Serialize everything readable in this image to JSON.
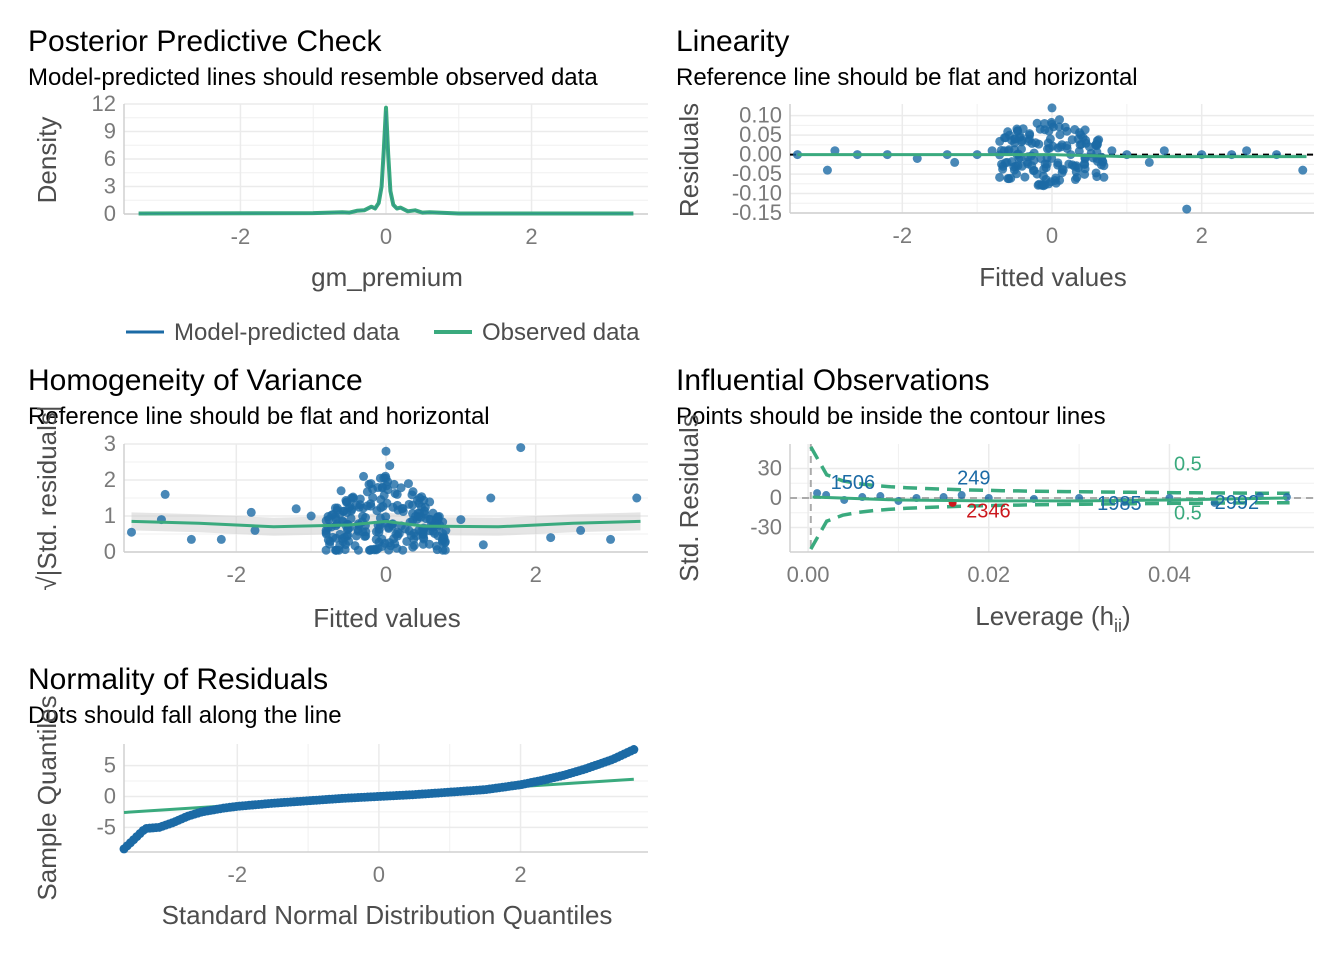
{
  "colors": {
    "model": "#1b6aa5",
    "observed": "#3aaa7e",
    "points": "#1b6aa5",
    "highlight": "#cb181d",
    "grid": "#ebebeb",
    "ref": "#000000"
  },
  "legend": [
    {
      "label": "Model-predicted data",
      "color": "#1b6aa5"
    },
    {
      "label": "Observed data",
      "color": "#3aaa7e"
    }
  ],
  "chart_data": [
    {
      "id": "ppc",
      "type": "line",
      "title": "Posterior Predictive Check",
      "subtitle": "Model-predicted lines should resemble observed data",
      "xlabel": "gm_premium",
      "ylabel": "Density",
      "xlim": [
        -3.6,
        3.6
      ],
      "ylim": [
        0,
        12
      ],
      "xticks": [
        -2,
        0,
        2
      ],
      "xtick_labels": [
        "-2",
        "0",
        "2"
      ],
      "yticks": [
        0,
        3,
        6,
        9,
        12
      ],
      "ytick_labels": [
        "0",
        "3",
        "6",
        "9",
        "12"
      ],
      "series": [
        {
          "name": "Observed data",
          "x": [
            -3.4,
            -1.0,
            -0.6,
            -0.5,
            -0.4,
            -0.3,
            -0.2,
            -0.15,
            -0.1,
            -0.06,
            -0.03,
            0.0,
            0.03,
            0.06,
            0.1,
            0.15,
            0.2,
            0.3,
            0.4,
            0.5,
            0.6,
            1.0,
            3.4
          ],
          "y": [
            0.05,
            0.1,
            0.2,
            0.15,
            0.35,
            0.4,
            0.8,
            0.6,
            1.2,
            3.0,
            7.0,
            11.6,
            6.5,
            2.5,
            1.0,
            0.6,
            0.7,
            0.3,
            0.4,
            0.15,
            0.2,
            0.05,
            0.05
          ]
        }
      ]
    },
    {
      "id": "linearity",
      "type": "scatter",
      "title": "Linearity",
      "subtitle": "Reference line should be flat and horizontal",
      "xlabel": "Fitted values",
      "ylabel": "Residuals",
      "xlim": [
        -3.5,
        3.5
      ],
      "ylim": [
        -0.15,
        0.13
      ],
      "xticks": [
        -2,
        0,
        2
      ],
      "xtick_labels": [
        "-2",
        "0",
        "2"
      ],
      "yticks": [
        -0.15,
        -0.1,
        -0.05,
        0.0,
        0.05,
        0.1
      ],
      "ytick_labels": [
        "-0.15",
        "-0.10",
        "-0.05",
        "0.00",
        "0.05",
        "0.10"
      ],
      "reference_line": 0,
      "points": [
        [
          -3.4,
          0.0
        ],
        [
          -3.0,
          -0.04
        ],
        [
          -2.9,
          0.01
        ],
        [
          -2.6,
          0.0
        ],
        [
          -2.2,
          0.0
        ],
        [
          -1.8,
          -0.01
        ],
        [
          -1.4,
          0.0
        ],
        [
          -1.3,
          -0.02
        ],
        [
          -1.0,
          0.0
        ],
        [
          -0.8,
          0.01
        ],
        [
          -0.6,
          -0.02
        ],
        [
          -0.5,
          0.03
        ],
        [
          -0.4,
          -0.03
        ],
        [
          -0.3,
          0.05
        ],
        [
          -0.2,
          -0.05
        ],
        [
          -0.1,
          0.08
        ],
        [
          0.0,
          0.12
        ],
        [
          0.05,
          -0.06
        ],
        [
          0.1,
          0.09
        ],
        [
          0.15,
          -0.04
        ],
        [
          0.2,
          0.06
        ],
        [
          0.3,
          -0.03
        ],
        [
          0.35,
          0.04
        ],
        [
          0.5,
          0.02
        ],
        [
          0.6,
          -0.01
        ],
        [
          0.8,
          0.01
        ],
        [
          1.0,
          0.0
        ],
        [
          1.3,
          -0.02
        ],
        [
          1.5,
          0.01
        ],
        [
          1.8,
          -0.14
        ],
        [
          2.0,
          0.0
        ],
        [
          2.4,
          0.0
        ],
        [
          2.6,
          0.01
        ],
        [
          3.0,
          0.0
        ],
        [
          3.35,
          -0.04
        ],
        [
          -0.15,
          -0.01
        ],
        [
          0.12,
          0.02
        ],
        [
          -0.05,
          0.03
        ],
        [
          0.25,
          0.0
        ]
      ],
      "smooth": {
        "x": [
          -3.4,
          -2,
          -1,
          0,
          1,
          2,
          3.4
        ],
        "y": [
          0.0,
          0.0,
          0.0,
          0.0,
          -0.005,
          -0.005,
          -0.005
        ]
      }
    },
    {
      "id": "homogeneity",
      "type": "scatter",
      "title": "Homogeneity of Variance",
      "subtitle": "Reference line should be flat and horizontal",
      "xlabel": "Fitted values",
      "ylabel": "√|Std. residuals|",
      "xlim": [
        -3.5,
        3.5
      ],
      "ylim": [
        0,
        3
      ],
      "xticks": [
        -2,
        0,
        2
      ],
      "xtick_labels": [
        "-2",
        "0",
        "2"
      ],
      "yticks": [
        0,
        1,
        2,
        3
      ],
      "ytick_labels": [
        "0",
        "1",
        "2",
        "3"
      ],
      "points": [
        [
          -3.4,
          0.55
        ],
        [
          -3.0,
          0.9
        ],
        [
          -2.95,
          1.6
        ],
        [
          -2.6,
          0.35
        ],
        [
          -2.2,
          0.35
        ],
        [
          -1.8,
          1.1
        ],
        [
          -1.75,
          0.6
        ],
        [
          -1.2,
          1.2
        ],
        [
          -1.0,
          1.0
        ],
        [
          -0.8,
          0.6
        ],
        [
          -0.6,
          1.7
        ],
        [
          -0.4,
          1.3
        ],
        [
          -0.3,
          2.1
        ],
        [
          -0.2,
          1.9
        ],
        [
          0.0,
          2.8
        ],
        [
          0.05,
          2.4
        ],
        [
          0.15,
          1.6
        ],
        [
          0.3,
          1.9
        ],
        [
          0.45,
          1.5
        ],
        [
          0.6,
          0.9
        ],
        [
          0.8,
          0.6
        ],
        [
          1.0,
          0.9
        ],
        [
          1.4,
          1.5
        ],
        [
          1.8,
          2.9
        ],
        [
          2.2,
          0.4
        ],
        [
          2.6,
          0.6
        ],
        [
          3.0,
          0.35
        ],
        [
          3.35,
          1.5
        ],
        [
          -0.5,
          0.3
        ],
        [
          0.5,
          0.4
        ],
        [
          1.3,
          0.2
        ]
      ],
      "smooth": {
        "x": [
          -3.4,
          -2.5,
          -1.5,
          -0.5,
          0,
          0.5,
          1.5,
          2.5,
          3.4
        ],
        "y": [
          0.85,
          0.8,
          0.7,
          0.75,
          0.85,
          0.72,
          0.7,
          0.8,
          0.85
        ]
      }
    },
    {
      "id": "influential",
      "type": "scatter",
      "title": "Influential Observations",
      "subtitle": "Points should be inside the contour lines",
      "xlabel": "Leverage (h",
      "xlabel_sub": "ii",
      "xlabel_end": ")",
      "ylabel": "Std. Residuals",
      "xlim": [
        -0.002,
        0.056
      ],
      "ylim": [
        -55,
        55
      ],
      "xticks": [
        0.0,
        0.02,
        0.04
      ],
      "xtick_labels": [
        "0.00",
        "0.02",
        "0.04"
      ],
      "yticks": [
        -30,
        0,
        30
      ],
      "ytick_labels": [
        "-30",
        "0",
        "30"
      ],
      "points": [
        [
          0.001,
          5
        ],
        [
          0.002,
          3
        ],
        [
          0.004,
          -2
        ],
        [
          0.006,
          1
        ],
        [
          0.008,
          2
        ],
        [
          0.01,
          -3
        ],
        [
          0.012,
          0
        ],
        [
          0.015,
          1
        ],
        [
          0.017,
          3
        ],
        [
          0.02,
          0
        ],
        [
          0.025,
          -1
        ],
        [
          0.03,
          0
        ],
        [
          0.035,
          -4
        ],
        [
          0.04,
          0
        ],
        [
          0.045,
          -5
        ],
        [
          0.05,
          2
        ],
        [
          0.053,
          1
        ]
      ],
      "highlight_point": [
        0.016,
        -5
      ],
      "labels": [
        {
          "text": "1506",
          "x": 0.0025,
          "y": 9,
          "color": "#1b6aa5"
        },
        {
          "text": "249",
          "x": 0.0165,
          "y": 14,
          "color": "#1b6aa5"
        },
        {
          "text": "2346",
          "x": 0.0175,
          "y": -20,
          "color": "#cb181d"
        },
        {
          "text": "1985",
          "x": 0.032,
          "y": -12,
          "color": "#1b6aa5"
        },
        {
          "text": "2992",
          "x": 0.045,
          "y": -11,
          "color": "#1b6aa5"
        },
        {
          "text": "0.5",
          "x": 0.0405,
          "y": 28,
          "color": "#3aaa7e"
        },
        {
          "text": "0.5",
          "x": 0.0405,
          "y": -22,
          "color": "#3aaa7e"
        }
      ],
      "smooth": {
        "x": [
          0.0005,
          0.01,
          0.02,
          0.03,
          0.04,
          0.053
        ],
        "y": [
          1,
          -2,
          -3,
          -3,
          -2,
          0
        ]
      }
    },
    {
      "id": "normality",
      "type": "scatter",
      "title": "Normality of Residuals",
      "subtitle": "Dots should fall along the line",
      "xlabel": "Standard Normal Distribution Quantiles",
      "ylabel": "Sample Quantiles",
      "xlim": [
        -3.6,
        3.8
      ],
      "ylim": [
        -9,
        8.5
      ],
      "xticks": [
        -2,
        0,
        2
      ],
      "xtick_labels": [
        "-2",
        "0",
        "2"
      ],
      "yticks": [
        -5,
        0,
        5
      ],
      "ytick_labels": [
        "-5",
        "0",
        "5"
      ],
      "qq_x": [
        -3.6,
        -3.3,
        -3.1,
        -2.9,
        -2.7,
        -2.5,
        -2.2,
        -2.0,
        -1.5,
        -1.0,
        -0.5,
        0.0,
        0.5,
        1.0,
        1.5,
        2.0,
        2.3,
        2.6,
        2.9,
        3.1,
        3.3,
        3.6
      ],
      "qq_y": [
        -8.5,
        -5.2,
        -5.0,
        -4.2,
        -3.2,
        -2.5,
        -1.9,
        -1.6,
        -1.1,
        -0.7,
        -0.3,
        0.0,
        0.3,
        0.7,
        1.1,
        1.9,
        2.6,
        3.4,
        4.4,
        5.2,
        6.0,
        7.6
      ],
      "reference": {
        "x": [
          -3.6,
          3.6
        ],
        "y": [
          -2.6,
          2.8
        ]
      }
    }
  ]
}
